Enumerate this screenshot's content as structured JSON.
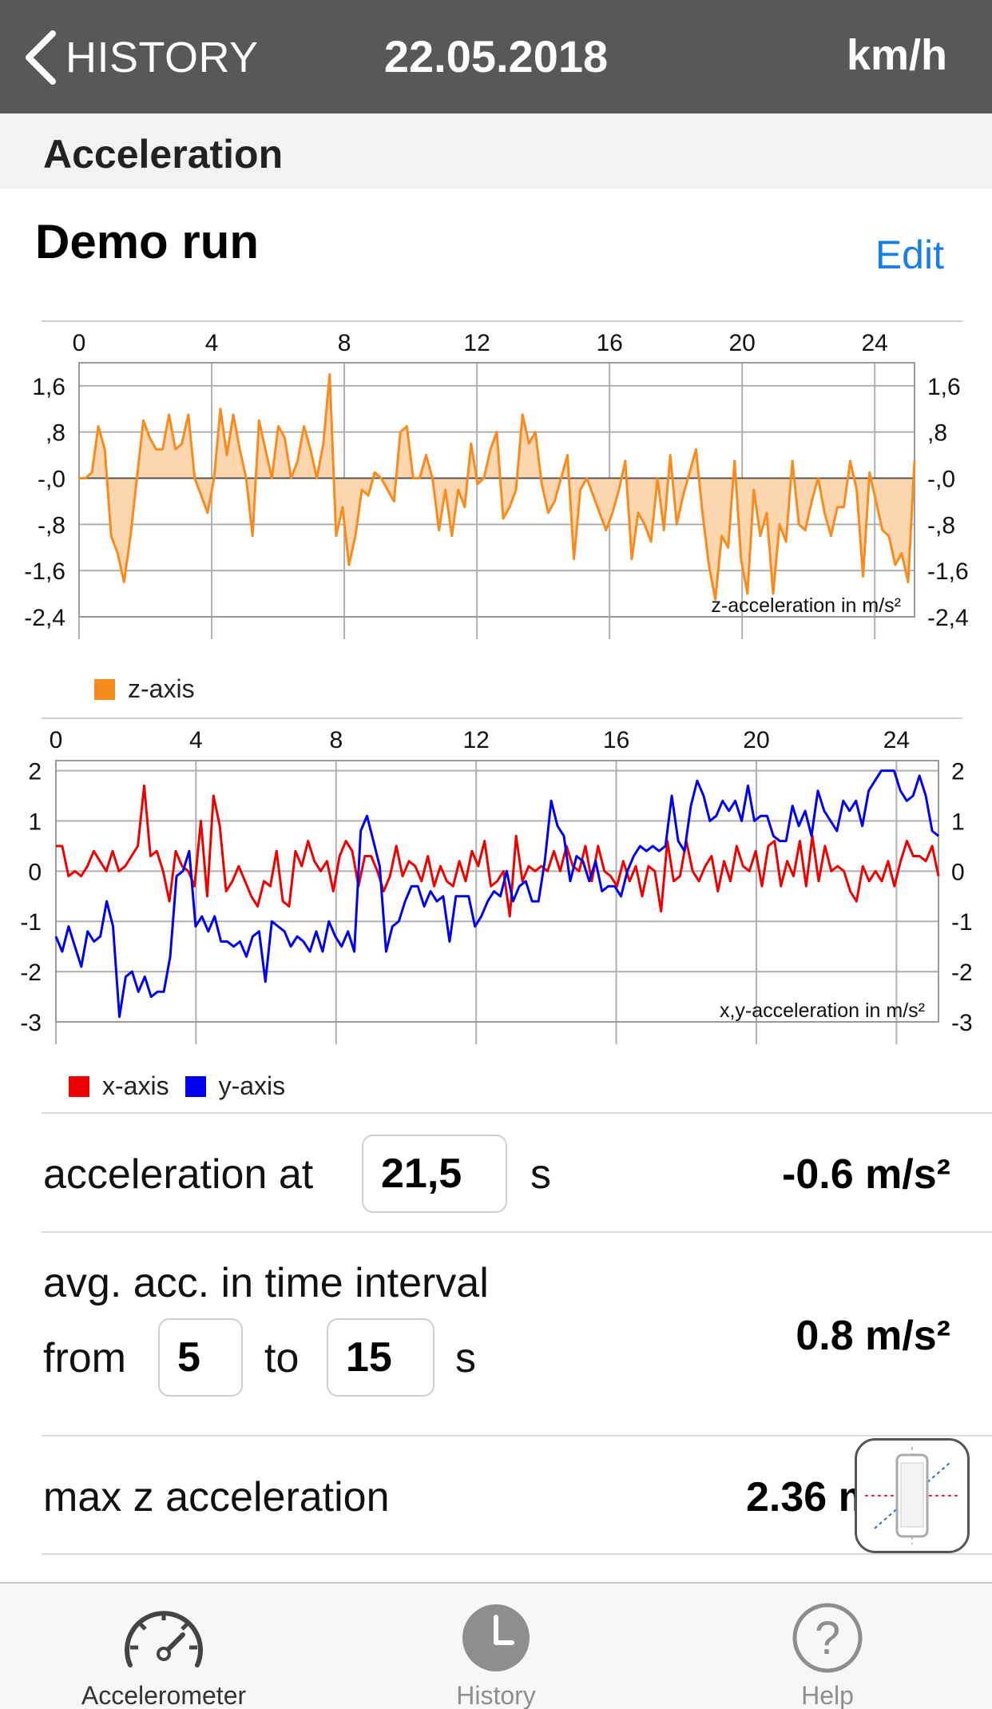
{
  "nav": {
    "back_label": "HISTORY",
    "date": "22.05.2018",
    "unit": "km/h"
  },
  "section": {
    "title": "Acceleration"
  },
  "run": {
    "title": "Demo run",
    "edit_label": "Edit"
  },
  "z_chart": {
    "type": "area",
    "x_ticks": [
      "0",
      "4",
      "8",
      "12",
      "16",
      "20",
      "24"
    ],
    "y_ticks": [
      "1,6",
      ",8",
      "-,0",
      "-,8",
      "-1,6",
      "-2,4"
    ],
    "ylim": [
      -2.4,
      2.0
    ],
    "xlim": [
      0,
      25.2
    ],
    "annotation": "z-acceleration in m/s²",
    "legend": [
      {
        "name": "z-axis",
        "color": "#f98b1e"
      }
    ],
    "color": "#f98b1e",
    "fill": "#fcd6ae"
  },
  "xy_chart": {
    "type": "line",
    "x_ticks": [
      "0",
      "4",
      "8",
      "12",
      "16",
      "20",
      "24"
    ],
    "y_ticks": [
      "2",
      "1",
      "0",
      "-1",
      "-2",
      "-3"
    ],
    "ylim": [
      -3,
      2.2
    ],
    "xlim": [
      0,
      25.2
    ],
    "annotation": "x,y-acceleration in m/s²",
    "legend": [
      {
        "name": "x-axis",
        "color": "#ee0000"
      },
      {
        "name": "y-axis",
        "color": "#0000ee"
      }
    ]
  },
  "chart_data": [
    {
      "type": "area",
      "xlabel": "",
      "ylabel": "",
      "annotation": "z-acceleration in m/s²",
      "x_range": [
        0,
        25.2
      ],
      "y_range": [
        -2.4,
        2.0
      ],
      "series": [
        {
          "name": "z-axis",
          "values": [
            0.0,
            0.0,
            0.1,
            0.9,
            0.5,
            -1.0,
            -1.3,
            -1.8,
            -1.0,
            0.0,
            1.0,
            0.7,
            0.5,
            0.5,
            1.1,
            0.5,
            0.6,
            1.1,
            0.0,
            -0.3,
            -0.6,
            0.0,
            1.2,
            0.4,
            1.1,
            0.5,
            0.0,
            -1.0,
            1.0,
            0.5,
            0.0,
            0.9,
            0.7,
            0.0,
            0.3,
            0.9,
            0.5,
            0.0,
            0.6,
            1.8,
            -1.0,
            -0.5,
            -1.5,
            -1.0,
            -0.2,
            -0.3,
            0.1,
            0.0,
            -0.2,
            -0.4,
            0.8,
            0.9,
            0.0,
            0.0,
            0.4,
            0.0,
            -0.9,
            -0.2,
            -1.0,
            -0.2,
            -0.5,
            0.6,
            -0.1,
            0.0,
            0.5,
            0.8,
            -0.7,
            -0.5,
            -0.2,
            1.1,
            0.6,
            0.8,
            -0.1,
            -0.6,
            -0.4,
            0.0,
            0.4,
            -1.4,
            -0.2,
            0.0,
            -0.3,
            -0.6,
            -0.9,
            -0.6,
            -0.2,
            0.3,
            -1.4,
            -0.6,
            -0.8,
            -1.1,
            0.0,
            -0.9,
            0.4,
            -0.8,
            -0.3,
            0.1,
            0.5,
            -0.6,
            -1.5,
            -2.1,
            -1.0,
            -1.2,
            0.3,
            -1.4,
            -2.0,
            -0.2,
            -1.0,
            -0.6,
            -2.0,
            -0.8,
            -1.1,
            0.3,
            -0.8,
            -0.9,
            -0.4,
            0.0,
            -0.6,
            -1.0,
            -0.5,
            -0.5,
            0.3,
            -0.2,
            -1.7,
            0.1,
            -0.4,
            -0.9,
            -1.0,
            -1.5,
            -1.3,
            -1.8,
            0.3
          ]
        }
      ]
    },
    {
      "type": "line",
      "xlabel": "",
      "ylabel": "",
      "annotation": "x,y-acceleration in m/s²",
      "x_range": [
        0,
        25.2
      ],
      "y_range": [
        -3,
        2.2
      ],
      "series": [
        {
          "name": "x-axis",
          "values": [
            0.5,
            0.5,
            -0.1,
            0.0,
            -0.1,
            0.1,
            0.4,
            0.2,
            0.0,
            0.4,
            0.0,
            0.1,
            0.3,
            0.5,
            1.7,
            0.3,
            0.4,
            0.0,
            -0.6,
            0.4,
            0.1,
            0.0,
            -0.3,
            1.0,
            -0.5,
            1.5,
            0.9,
            -0.4,
            -0.2,
            0.1,
            -0.2,
            -0.5,
            -0.7,
            -0.2,
            -0.3,
            0.4,
            -0.6,
            -0.7,
            0.4,
            0.1,
            0.6,
            0.2,
            0.0,
            0.2,
            -0.4,
            0.3,
            0.6,
            0.4,
            -0.3,
            0.3,
            0.3,
            0.0,
            -0.4,
            -0.1,
            0.5,
            -0.1,
            0.2,
            0.1,
            -0.2,
            0.3,
            -0.3,
            0.1,
            -0.2,
            -0.3,
            0.2,
            -0.2,
            0.4,
            0.1,
            0.6,
            -0.3,
            -0.2,
            0.0,
            -0.9,
            0.7,
            -0.2,
            0.1,
            0.0,
            0.1,
            0.0,
            0.4,
            0.0,
            0.5,
            0.1,
            0.0,
            0.5,
            -0.2,
            0.5,
            0.0,
            -0.1,
            -0.3,
            0.2,
            -0.2,
            0.1,
            -0.5,
            0.1,
            0.0,
            -0.8,
            0.6,
            -0.2,
            -0.1,
            0.6,
            0.0,
            -0.2,
            0.1,
            0.3,
            -0.4,
            0.2,
            -0.2,
            0.5,
            0.1,
            0.0,
            0.4,
            -0.3,
            0.5,
            0.6,
            -0.3,
            0.2,
            -0.1,
            0.6,
            -0.3,
            0.7,
            -0.2,
            0.5,
            0.0,
            0.1,
            0.0,
            -0.4,
            -0.6,
            0.1,
            -0.2,
            0.0,
            -0.2,
            0.2,
            -0.3,
            0.2,
            0.6,
            0.3,
            0.3,
            0.2,
            0.5,
            -0.1
          ]
        },
        {
          "name": "y-axis",
          "values": [
            -1.3,
            -1.6,
            -1.1,
            -1.5,
            -1.9,
            -1.2,
            -1.4,
            -1.3,
            -0.6,
            -1.1,
            -2.9,
            -2.1,
            -2.0,
            -2.4,
            -2.1,
            -2.5,
            -2.4,
            -2.4,
            -1.7,
            -0.1,
            0.0,
            0.4,
            -1.1,
            -0.9,
            -1.2,
            -0.9,
            -1.4,
            -1.4,
            -1.5,
            -1.4,
            -1.7,
            -1.3,
            -1.2,
            -2.2,
            -1.0,
            -1.1,
            -1.2,
            -1.5,
            -1.3,
            -1.4,
            -1.6,
            -1.2,
            -1.6,
            -1.0,
            -1.3,
            -1.5,
            -1.2,
            -1.6,
            0.8,
            1.1,
            0.6,
            0.1,
            -1.6,
            -1.1,
            -1.0,
            -0.6,
            -0.3,
            -0.3,
            -0.7,
            -0.4,
            -0.6,
            -0.5,
            -1.4,
            -0.5,
            -0.5,
            -0.5,
            -1.1,
            -0.9,
            -0.6,
            -0.4,
            -0.5,
            0.0,
            -0.6,
            -0.3,
            -0.2,
            -0.6,
            -0.6,
            0.2,
            1.4,
            0.9,
            0.7,
            -0.2,
            0.3,
            0.2,
            -0.2,
            0.2,
            -0.4,
            -0.3,
            -0.3,
            -0.5,
            0.0,
            0.3,
            0.5,
            0.4,
            0.5,
            0.4,
            0.5,
            1.5,
            0.6,
            0.4,
            1.3,
            1.8,
            1.5,
            1.0,
            1.1,
            1.4,
            1.2,
            1.4,
            1.0,
            1.7,
            1.0,
            1.1,
            1.1,
            0.7,
            0.6,
            0.6,
            1.3,
            0.9,
            1.2,
            0.7,
            1.6,
            1.2,
            1.0,
            0.8,
            1.4,
            1.2,
            1.4,
            0.9,
            1.6,
            1.8,
            2.0,
            2.0,
            2.0,
            1.6,
            1.4,
            1.5,
            1.9,
            1.5,
            0.8,
            0.7
          ]
        }
      ]
    }
  ],
  "measure": {
    "acc_at_label": "acceleration at",
    "acc_at_time": "21,5",
    "acc_at_unit": "s",
    "acc_at_value": "-0.6 m/s²",
    "avg_label": "avg. acc. in time interval",
    "from_label": "from",
    "from_value": "5",
    "to_label": "to",
    "to_value": "15",
    "interval_unit": "s",
    "avg_value": "0.8 m/s²",
    "max_z_label": "max z acceleration",
    "max_z_value": "2.36 m/s²"
  },
  "tabs": [
    {
      "label": "Accelerometer",
      "icon": "speedometer-icon",
      "active": true
    },
    {
      "label": "History",
      "icon": "clock-icon",
      "active": false
    },
    {
      "label": "Help",
      "icon": "question-icon",
      "active": false
    }
  ],
  "colors": {
    "navbar": "#585858",
    "accent_link": "#1a7ee8",
    "z_series": "#f98b1e",
    "x_series": "#ee0000",
    "y_series": "#0000ee"
  }
}
